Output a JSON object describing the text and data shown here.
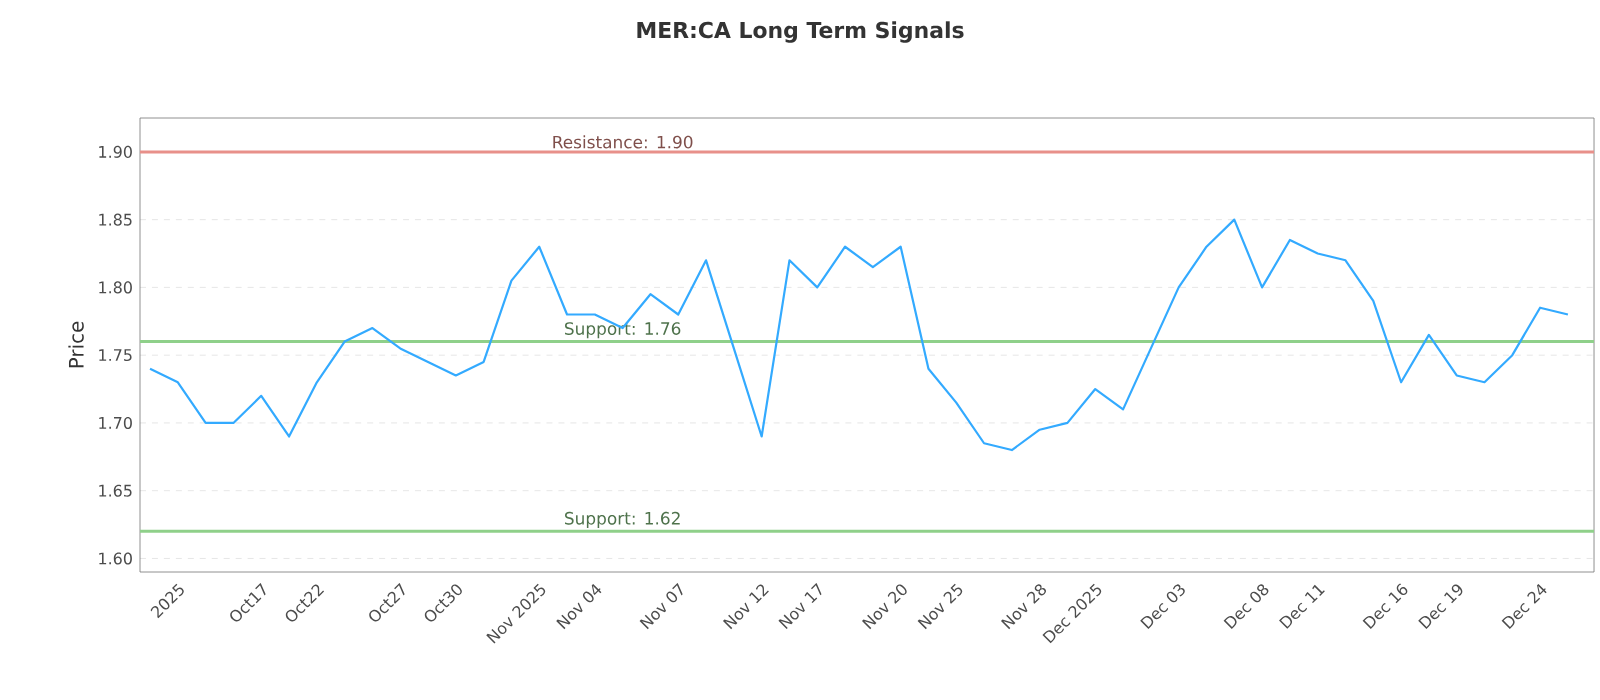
{
  "chart_data": {
    "type": "line",
    "title": "MER:CA Long Term Signals",
    "ylabel": "Price",
    "categories": [
      null,
      "2025",
      null,
      null,
      "Oct17",
      null,
      "Oct22",
      null,
      null,
      "Oct27",
      null,
      "Oct30",
      null,
      null,
      "Nov 2025",
      null,
      "Nov 04",
      null,
      null,
      "Nov 07",
      null,
      null,
      "Nov 12",
      null,
      "Nov 17",
      null,
      null,
      "Nov 20",
      null,
      "Nov 25",
      null,
      null,
      "Nov 28",
      null,
      "Dec 2025",
      null,
      null,
      "Dec 03",
      null,
      null,
      "Dec 08",
      null,
      "Dec 11",
      null,
      null,
      "Dec 16",
      null,
      "Dec 19",
      null,
      null,
      "Dec 24",
      null
    ],
    "series": [
      {
        "color": "#33aaff",
        "values": [
          1.74,
          1.73,
          1.7,
          1.7,
          1.72,
          1.69,
          1.73,
          1.76,
          1.77,
          1.755,
          1.745,
          1.735,
          1.745,
          1.805,
          1.83,
          1.78,
          1.78,
          1.77,
          1.795,
          1.78,
          1.82,
          1.755,
          1.69,
          1.82,
          1.8,
          1.83,
          1.815,
          1.83,
          1.74,
          1.715,
          1.685,
          1.68,
          1.695,
          1.7,
          1.725,
          1.71,
          1.755,
          1.8,
          1.83,
          1.85,
          1.8,
          1.835,
          1.825,
          1.82,
          1.79,
          1.73,
          1.765,
          1.735,
          1.73,
          1.75,
          1.785,
          1.78
        ]
      }
    ],
    "ylim": [
      1.59,
      1.925
    ],
    "yticks": [
      {
        "value": 1.6,
        "label": "1.60"
      },
      {
        "value": 1.65,
        "label": "1.65"
      },
      {
        "value": 1.7,
        "label": "1.70"
      },
      {
        "value": 1.75,
        "label": "1.75"
      },
      {
        "value": 1.8,
        "label": "1.80"
      },
      {
        "value": 1.85,
        "label": "1.85"
      },
      {
        "value": 1.9,
        "label": "1.90"
      }
    ],
    "grid": "y",
    "marker": "none",
    "line_style": "solid",
    "ref_lines": [
      {
        "axis": "y",
        "value": 1.9,
        "label": "Resistance: 1.90",
        "color": "#e8908a"
      },
      {
        "axis": "y",
        "value": 1.76,
        "label": "Support: 1.76",
        "color": "#8fd08a"
      },
      {
        "axis": "y",
        "value": 1.62,
        "label": "Support: 1.62",
        "color": "#8fd08a"
      }
    ]
  }
}
